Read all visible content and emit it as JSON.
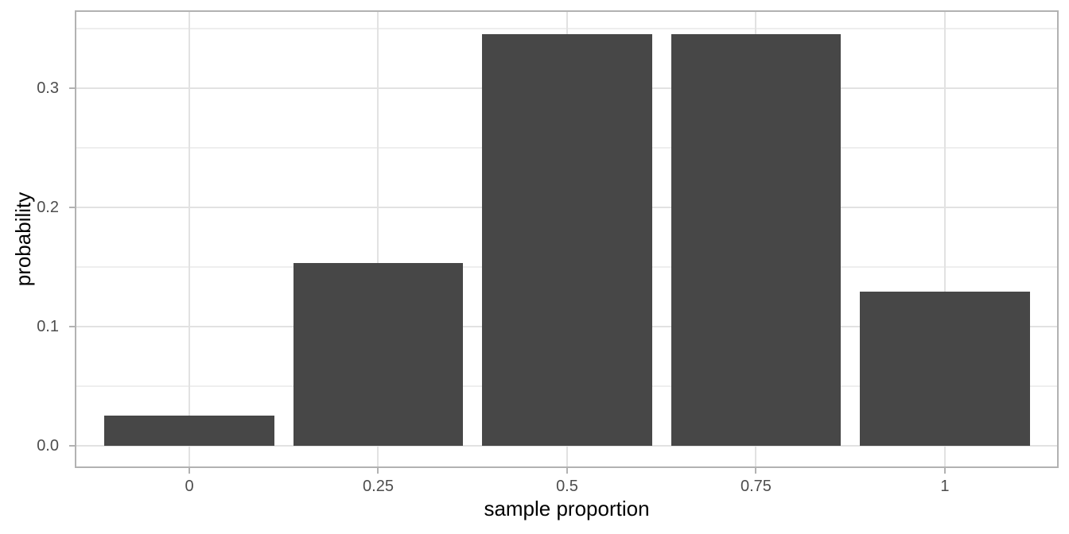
{
  "chart_data": {
    "type": "bar",
    "title": "",
    "xlabel": "sample proportion",
    "ylabel": "probability",
    "categories": [
      0,
      0.25,
      0.5,
      0.75,
      1
    ],
    "values": [
      0.0256,
      0.1536,
      0.3456,
      0.3456,
      0.1296
    ],
    "x_tick_labels": [
      "0",
      "0.25",
      "0.5",
      "0.75",
      "1"
    ],
    "x_tick_values": [
      0,
      0.25,
      0.5,
      0.75,
      1
    ],
    "y_tick_labels": [
      "0.0",
      "0.1",
      "0.2",
      "0.3"
    ],
    "y_tick_values": [
      0,
      0.1,
      0.2,
      0.3
    ],
    "y_minor_values": [
      0.05,
      0.15,
      0.25,
      0.35
    ],
    "bar_width": 0.225,
    "xlim": [
      -0.1495,
      1.1485
    ],
    "ylim": [
      -0.017,
      0.364
    ],
    "grid": "horizontal major and minor lines; vertical lines at major x breaks only",
    "legend": false,
    "colors": {
      "bar_fill": "#474747",
      "panel_border": "#b2b2b2",
      "grid_major": "#e2e2e2",
      "grid_minor": "#eeeeee",
      "tick_mark": "#b2b2b2",
      "axis_text": "#4d4d4d",
      "axis_title": "#000000",
      "background": "#ffffff"
    }
  }
}
